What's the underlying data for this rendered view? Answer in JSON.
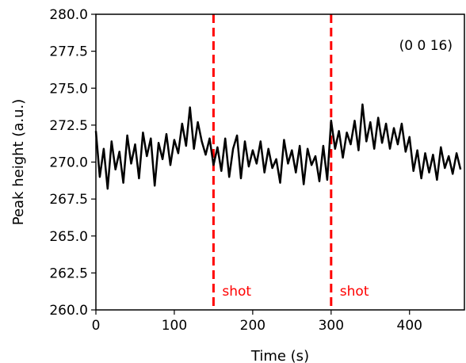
{
  "chart_data": {
    "type": "line",
    "title": "",
    "xlabel": "Time (s)",
    "ylabel": "Peak height (a.u.)",
    "xlim": [
      0,
      470
    ],
    "ylim": [
      260,
      280
    ],
    "xticks": [
      0,
      100,
      200,
      300,
      400
    ],
    "yticks": [
      260.0,
      262.5,
      265.0,
      267.5,
      270.0,
      272.5,
      275.0,
      277.5,
      280.0
    ],
    "ytick_labels": [
      "260.0",
      "262.5",
      "265.0",
      "267.5",
      "270.0",
      "272.5",
      "275.0",
      "277.5",
      "280.0"
    ],
    "grid": false,
    "annotation": "(0 0 16)",
    "series": [
      {
        "color": "#000000",
        "x": [
          0,
          5,
          10,
          15,
          20,
          25,
          30,
          35,
          40,
          45,
          50,
          55,
          60,
          65,
          70,
          75,
          80,
          85,
          90,
          95,
          100,
          105,
          110,
          115,
          120,
          125,
          130,
          135,
          140,
          145,
          150,
          155,
          160,
          165,
          170,
          175,
          180,
          185,
          190,
          195,
          200,
          205,
          210,
          215,
          220,
          225,
          230,
          235,
          240,
          245,
          250,
          255,
          260,
          265,
          270,
          275,
          280,
          285,
          290,
          295,
          300,
          305,
          310,
          315,
          320,
          325,
          330,
          335,
          340,
          345,
          350,
          355,
          360,
          365,
          370,
          375,
          380,
          385,
          390,
          395,
          400,
          405,
          410,
          415,
          420,
          425,
          430,
          435,
          440,
          445,
          450,
          455,
          460,
          465
        ],
        "y": [
          272.1,
          269.0,
          270.9,
          268.2,
          271.4,
          269.5,
          270.7,
          268.6,
          271.8,
          269.9,
          271.2,
          268.9,
          272.0,
          270.4,
          271.6,
          268.4,
          271.3,
          270.2,
          271.9,
          269.8,
          271.5,
          270.6,
          272.6,
          271.1,
          273.7,
          270.9,
          272.7,
          271.4,
          270.5,
          271.6,
          269.8,
          271.0,
          269.4,
          271.6,
          269.0,
          270.9,
          271.8,
          268.9,
          271.4,
          269.7,
          270.8,
          269.9,
          271.4,
          269.3,
          270.9,
          269.6,
          270.2,
          268.6,
          271.5,
          269.9,
          270.8,
          269.3,
          271.1,
          268.5,
          270.9,
          269.8,
          270.4,
          268.7,
          271.1,
          268.8,
          272.8,
          270.9,
          272.1,
          270.3,
          272.0,
          271.2,
          272.8,
          270.8,
          273.9,
          271.4,
          272.7,
          270.9,
          273.0,
          271.3,
          272.6,
          270.9,
          272.3,
          271.2,
          272.6,
          270.7,
          271.7,
          269.4,
          270.8,
          268.9,
          270.6,
          269.3,
          270.5,
          268.8,
          271.0,
          269.6,
          270.4,
          269.2,
          270.6,
          269.5
        ]
      }
    ],
    "vlines": [
      {
        "x": 150,
        "label": "shot",
        "color": "#ff0000",
        "style": "dashed"
      },
      {
        "x": 300,
        "label": "shot",
        "color": "#ff0000",
        "style": "dashed"
      }
    ]
  }
}
